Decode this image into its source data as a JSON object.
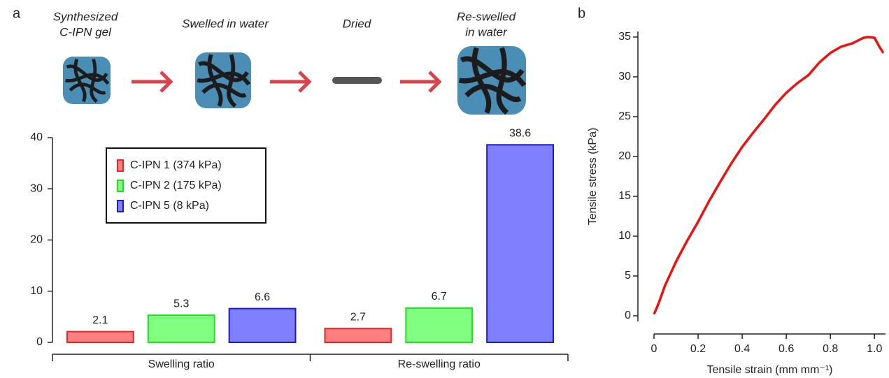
{
  "panel_labels": [
    "a",
    "b"
  ],
  "schematic": {
    "steps": [
      [
        "Synthesized",
        "C-IPN gel"
      ],
      [
        "Swelled in water"
      ],
      [
        "Dried"
      ],
      [
        "Re-swelled",
        "in water"
      ]
    ]
  },
  "chart_data": [
    {
      "type": "bar",
      "categories": [
        "Swelling ratio",
        "Re-swelling ratio"
      ],
      "series": [
        {
          "name": "C-IPN 1 (374 kPa)",
          "color": "#ff8080",
          "edge": "#ee2222",
          "values": [
            2.1,
            2.7
          ]
        },
        {
          "name": "C-IPN 2 (175 kPa)",
          "color": "#80ff80",
          "edge": "#22dd22",
          "values": [
            5.3,
            6.7
          ]
        },
        {
          "name": "C-IPN 5 (8 kPa)",
          "color": "#8080ff",
          "edge": "#1a1ad0",
          "values": [
            6.6,
            38.6
          ]
        }
      ],
      "ylim": [
        0,
        40
      ],
      "yticks": [
        0,
        10,
        20,
        30,
        40
      ],
      "legend": "upper left"
    },
    {
      "type": "line",
      "xlabel": "Tensile strain (mm mm⁻¹)",
      "ylabel": "Tensile stress (kPa)",
      "x": [
        0,
        0.02,
        0.05,
        0.1,
        0.15,
        0.2,
        0.25,
        0.3,
        0.35,
        0.4,
        0.45,
        0.5,
        0.55,
        0.6,
        0.65,
        0.7,
        0.75,
        0.8,
        0.85,
        0.9,
        0.95,
        0.97,
        1.0,
        1.02,
        1.04
      ],
      "series": [
        {
          "color": "#ee1111",
          "values": [
            0.2,
            1.5,
            3.8,
            6.8,
            9.4,
            11.8,
            14.4,
            16.8,
            19.1,
            21.2,
            23.0,
            24.7,
            26.5,
            28.0,
            29.2,
            30.2,
            31.8,
            33.0,
            33.8,
            34.2,
            34.9,
            35.0,
            34.9,
            33.9,
            33.0
          ]
        }
      ],
      "xlim": [
        0,
        1.05
      ],
      "ylim": [
        -0.7,
        35.7
      ],
      "xticks": [
        0,
        0.2,
        0.4,
        0.6,
        0.8,
        {
          "value": 1,
          "label": "1.0"
        }
      ],
      "yticks": [
        0,
        5,
        10,
        15,
        20,
        25,
        30,
        35
      ]
    }
  ]
}
